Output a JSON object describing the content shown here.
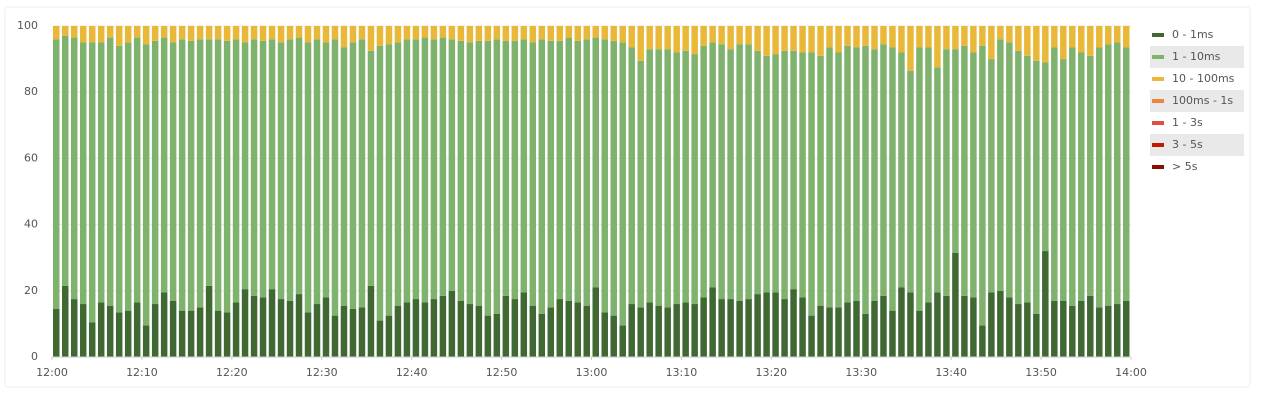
{
  "chart_data": {
    "type": "bar",
    "stacked": true,
    "xlim": [
      0,
      120
    ],
    "xticks": [
      {
        "value": 0,
        "label": "12:00"
      },
      {
        "value": 10,
        "label": "12:10"
      },
      {
        "value": 20,
        "label": "12:20"
      },
      {
        "value": 30,
        "label": "12:30"
      },
      {
        "value": 40,
        "label": "12:40"
      },
      {
        "value": 50,
        "label": "12:50"
      },
      {
        "value": 60,
        "label": "13:00"
      },
      {
        "value": 70,
        "label": "13:10"
      },
      {
        "value": 80,
        "label": "13:20"
      },
      {
        "value": 90,
        "label": "13:30"
      },
      {
        "value": 100,
        "label": "13:40"
      },
      {
        "value": 110,
        "label": "13:50"
      },
      {
        "value": 120,
        "label": "14:00"
      }
    ],
    "ylim": [
      0,
      100
    ],
    "yticks": [
      0,
      20,
      40,
      60,
      80,
      100
    ],
    "grid": true,
    "legend": "right",
    "series": [
      {
        "name": "0 - 1ms",
        "color": "#3f6833",
        "values": [
          14.5,
          21.5,
          17.5,
          16,
          10.5,
          16.5,
          15.5,
          13.5,
          14,
          16.5,
          9.5,
          16,
          19.5,
          17,
          14,
          14,
          15,
          21.5,
          14,
          13.5,
          16.5,
          20.5,
          18.5,
          18,
          20.5,
          17.5,
          17,
          19,
          13.5,
          16,
          18,
          12.5,
          15.5,
          14.5,
          15,
          21.5,
          11,
          12.5,
          15.5,
          16.5,
          17.5,
          16.5,
          17.5,
          18.5,
          20,
          17,
          16,
          15.5,
          12.5,
          13,
          18.5,
          17.5,
          19.5,
          15.5,
          13,
          15,
          17.5,
          17,
          16.5,
          15.5,
          21,
          13.5,
          12.5,
          9.5,
          16,
          15,
          16.5,
          15.5,
          15,
          16,
          16.5,
          16,
          18,
          21,
          17.5,
          17.5,
          17,
          17.5,
          19,
          19.5,
          19.5,
          17.5,
          20.5,
          18,
          12.5,
          15.5,
          15,
          15,
          16.5,
          17,
          13,
          17,
          18.5,
          14,
          21,
          19.5,
          14,
          16.5,
          19.5,
          18.5,
          31.5,
          18.5,
          18,
          9.5,
          19.5,
          20,
          18,
          16,
          16.5,
          13,
          32,
          17,
          17,
          15.5,
          17,
          18.5,
          15,
          15.5,
          16,
          17
        ]
      },
      {
        "name": "1 - 10ms",
        "color": "#7eb26d",
        "values": [
          81.5,
          75.5,
          79,
          79,
          84.5,
          78.5,
          81,
          80.5,
          81,
          80,
          85,
          79.5,
          77,
          78,
          82,
          81.5,
          81,
          74.5,
          82,
          82,
          79.5,
          74.5,
          77.5,
          77.5,
          75.5,
          77.5,
          79,
          77.5,
          81.5,
          80,
          77,
          83.5,
          78,
          80.5,
          81,
          71,
          83,
          82,
          79.5,
          79.5,
          78.5,
          80,
          78.5,
          78,
          76,
          78.5,
          79,
          80,
          83,
          83,
          77,
          78,
          76.5,
          79.5,
          83,
          80.5,
          78,
          79.5,
          79,
          80.5,
          75.5,
          82.5,
          83,
          85.5,
          77.5,
          74.5,
          76.5,
          77.5,
          78,
          76,
          76,
          75.5,
          76,
          74,
          77,
          75.5,
          77.5,
          77,
          73.5,
          71.5,
          72,
          75,
          72,
          74,
          79.5,
          75.5,
          78.5,
          77,
          77.5,
          76.5,
          81,
          76,
          76,
          79.5,
          71,
          67,
          79.5,
          77,
          68,
          74.5,
          61.5,
          75.5,
          74,
          84.5,
          70.5,
          76,
          77,
          76.5,
          74.5,
          76.5,
          57,
          76.5,
          73,
          78,
          75,
          72.5,
          78.5,
          79,
          79,
          76.5
        ]
      },
      {
        "name": "10 - 100ms",
        "color": "#eab839",
        "values": [
          4,
          3,
          3.5,
          5,
          5,
          5,
          3.5,
          6,
          5,
          3.5,
          5.5,
          4.5,
          3.5,
          5,
          4,
          4.5,
          4,
          4,
          4,
          4.5,
          4,
          5,
          4,
          4.5,
          4,
          5,
          4,
          3.5,
          5,
          4,
          5,
          4,
          6.5,
          5,
          4,
          7.5,
          6,
          5.5,
          5,
          4,
          4,
          3.5,
          4,
          3.5,
          4,
          4.5,
          5,
          4.5,
          4.5,
          4,
          4.5,
          4.5,
          4,
          5,
          4,
          4.5,
          4.5,
          3.5,
          4.5,
          4,
          3.5,
          4,
          4.5,
          5,
          6.5,
          10.5,
          7,
          7,
          7,
          8,
          7.5,
          8.5,
          6,
          5,
          5.5,
          7,
          5.5,
          5.5,
          7.5,
          9,
          8.5,
          7.5,
          7.5,
          8,
          8,
          9,
          6.5,
          8,
          6,
          6.5,
          6,
          7,
          5.5,
          6.5,
          8,
          13.5,
          6.5,
          6.5,
          12.5,
          7,
          7,
          6,
          8,
          6,
          10,
          4,
          5,
          7.5,
          9,
          10.5,
          11,
          6.5,
          10,
          6.5,
          8,
          9,
          6.5,
          5.5,
          5,
          6.5
        ]
      },
      {
        "name": "100ms - 1s",
        "color": "#ef843c"
      },
      {
        "name": "1 - 3s",
        "color": "#e24d42"
      },
      {
        "name": "3 - 5s",
        "color": "#bf1b00"
      },
      {
        "name": "> 5s",
        "color": "#890f02"
      }
    ]
  }
}
